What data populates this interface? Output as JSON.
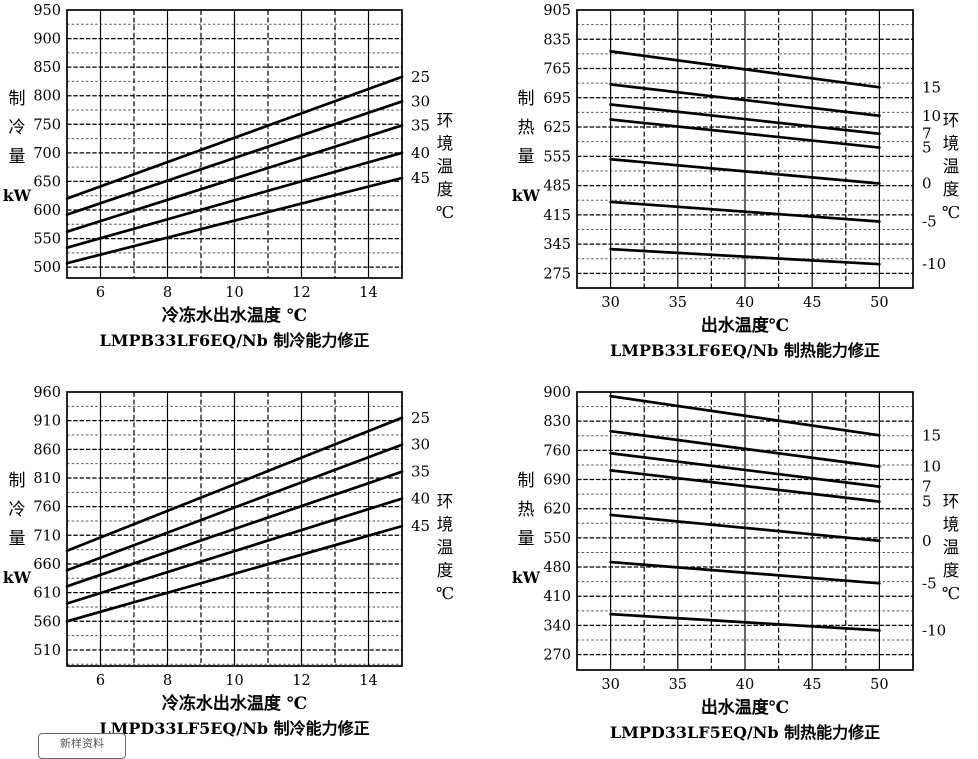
{
  "watermark": {
    "text": "新样资料"
  },
  "chart_data": [
    {
      "type": "line",
      "id": "lmpb33lf6eq-cooling",
      "title": "LMPB33LF6EQ/Nb 制冷能力修正",
      "xlabel": "冷冻水出水温度 ℃",
      "ylabel": "制冷量",
      "yunit": "kW",
      "right_label": "环境温度℃",
      "x": {
        "min": 5,
        "max": 15,
        "grid_step": 1,
        "labels": [
          6,
          8,
          10,
          12,
          14
        ]
      },
      "y": {
        "min": 481,
        "max": 950,
        "ticks": [
          950,
          900,
          850,
          800,
          750,
          700,
          650,
          600,
          550,
          500
        ],
        "minor_step": 25
      },
      "series": [
        {
          "label": "25",
          "x": [
            5,
            15
          ],
          "y": [
            620,
            833
          ]
        },
        {
          "label": "30",
          "x": [
            5,
            15
          ],
          "y": [
            592,
            790
          ]
        },
        {
          "label": "35",
          "x": [
            5,
            15
          ],
          "y": [
            562,
            748
          ]
        },
        {
          "label": "40",
          "x": [
            5,
            15
          ],
          "y": [
            534,
            700
          ]
        },
        {
          "label": "45",
          "x": [
            5,
            15
          ],
          "y": [
            507,
            656
          ]
        }
      ]
    },
    {
      "type": "line",
      "id": "lmpb33lf6eq-heating",
      "title": "LMPB33LF6EQ/Nb 制热能力修正",
      "xlabel": "出水温度℃",
      "ylabel": "制热量",
      "yunit": "kW",
      "right_label": "环境温度℃",
      "x": {
        "min": 27.5,
        "max": 52.5,
        "grid_step": 2.5,
        "labels": [
          30,
          35,
          40,
          45,
          50
        ]
      },
      "y": {
        "min": 240,
        "max": 905,
        "ticks": [
          905,
          835,
          765,
          695,
          625,
          555,
          485,
          415,
          345,
          275
        ],
        "minor_step": 35
      },
      "series": [
        {
          "label": "15",
          "x": [
            30,
            50
          ],
          "y": [
            806,
            720
          ]
        },
        {
          "label": "10",
          "x": [
            30,
            50
          ],
          "y": [
            727,
            652
          ]
        },
        {
          "label": "7",
          "x": [
            30,
            50
          ],
          "y": [
            679,
            609
          ]
        },
        {
          "label": "5",
          "x": [
            30,
            50
          ],
          "y": [
            643,
            576
          ]
        },
        {
          "label": "0",
          "x": [
            30,
            50
          ],
          "y": [
            548,
            490
          ]
        },
        {
          "label": "-5",
          "x": [
            30,
            50
          ],
          "y": [
            446,
            399
          ]
        },
        {
          "label": "-10",
          "x": [
            30,
            50
          ],
          "y": [
            333,
            297
          ]
        }
      ]
    },
    {
      "type": "line",
      "id": "lmpd33lf5eq-cooling",
      "title": "LMPD33LF5EQ/Nb 制冷能力修正",
      "xlabel": "冷冻水出水温度 ℃",
      "ylabel": "制冷量",
      "yunit": "kW",
      "right_label": "环境温度℃",
      "x": {
        "min": 5,
        "max": 15,
        "grid_step": 1,
        "labels": [
          6,
          8,
          10,
          12,
          14
        ]
      },
      "y": {
        "min": 482,
        "max": 960,
        "ticks": [
          960,
          910,
          860,
          810,
          760,
          710,
          660,
          610,
          560,
          510
        ],
        "minor_step": 25
      },
      "series": [
        {
          "label": "25",
          "x": [
            5,
            15
          ],
          "y": [
            683,
            915
          ]
        },
        {
          "label": "30",
          "x": [
            5,
            15
          ],
          "y": [
            649,
            868
          ]
        },
        {
          "label": "35",
          "x": [
            5,
            15
          ],
          "y": [
            621,
            821
          ]
        },
        {
          "label": "40",
          "x": [
            5,
            15
          ],
          "y": [
            591,
            774
          ]
        },
        {
          "label": "45",
          "x": [
            5,
            15
          ],
          "y": [
            560,
            726
          ]
        }
      ]
    },
    {
      "type": "line",
      "id": "lmpd33lf5eq-heating",
      "title": "LMPD33LF5EQ/Nb 制热能力修正",
      "xlabel": "出水温度℃",
      "ylabel": "制热量",
      "yunit": "kW",
      "right_label": "环境温度℃",
      "x": {
        "min": 27.5,
        "max": 52.5,
        "grid_step": 2.5,
        "labels": [
          30,
          35,
          40,
          45,
          50
        ]
      },
      "y": {
        "min": 233,
        "max": 900,
        "ticks": [
          900,
          830,
          760,
          690,
          620,
          550,
          480,
          410,
          340,
          270
        ],
        "minor_step": 35
      },
      "series": [
        {
          "label": "15",
          "x": [
            30,
            50
          ],
          "y": [
            890,
            796
          ]
        },
        {
          "label": "10",
          "x": [
            30,
            50
          ],
          "y": [
            806,
            721
          ]
        },
        {
          "label": "7",
          "x": [
            30,
            50
          ],
          "y": [
            753,
            673
          ]
        },
        {
          "label": "5",
          "x": [
            30,
            50
          ],
          "y": [
            712,
            637
          ]
        },
        {
          "label": "0",
          "x": [
            30,
            50
          ],
          "y": [
            605,
            543
          ]
        },
        {
          "label": "-5",
          "x": [
            30,
            50
          ],
          "y": [
            492,
            441
          ]
        },
        {
          "label": "-10",
          "x": [
            30,
            50
          ],
          "y": [
            367,
            328
          ]
        }
      ]
    }
  ]
}
